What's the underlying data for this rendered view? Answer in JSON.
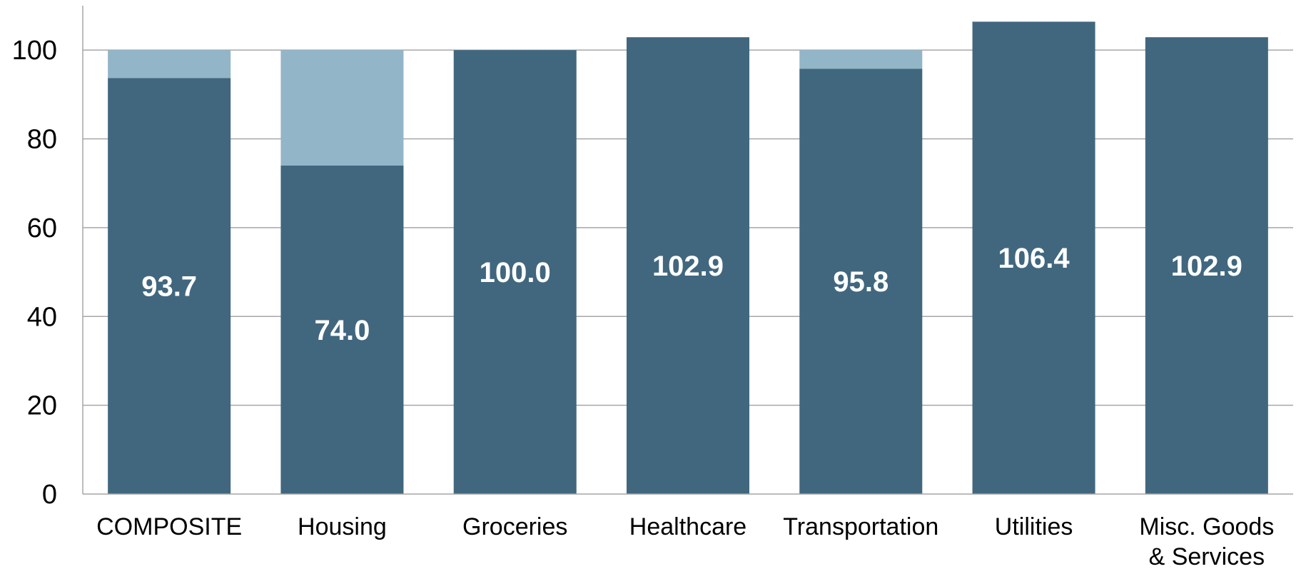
{
  "chart_data": {
    "type": "bar",
    "categories": [
      "COMPOSITE",
      "Housing",
      "Groceries",
      "Healthcare",
      "Transportation",
      "Utilities",
      "Misc. Goods & Services"
    ],
    "category_lines": [
      [
        "COMPOSITE"
      ],
      [
        "Housing"
      ],
      [
        "Groceries"
      ],
      [
        "Healthcare"
      ],
      [
        "Transportation"
      ],
      [
        "Utilities"
      ],
      [
        "Misc. Goods",
        "& Services"
      ]
    ],
    "values": [
      93.7,
      74.0,
      100.0,
      102.9,
      95.8,
      106.4,
      102.9
    ],
    "value_labels": [
      "93.7",
      "74.0",
      "100.0",
      "102.9",
      "95.8",
      "106.4",
      "102.9"
    ],
    "baseline": 100,
    "ylim": [
      0,
      110
    ],
    "yticks": [
      0,
      20,
      40,
      60,
      80,
      100
    ],
    "ytick_labels": [
      "0",
      "20",
      "40",
      "60",
      "80",
      "100"
    ],
    "grid": true,
    "title": "",
    "xlabel": "",
    "ylabel": "",
    "colors": {
      "bar": "#41677f",
      "gap_to_baseline": "#92b5c8",
      "grid": "#a6a6a6",
      "axis": "#a6a6a6",
      "data_label": "#ffffff"
    }
  }
}
